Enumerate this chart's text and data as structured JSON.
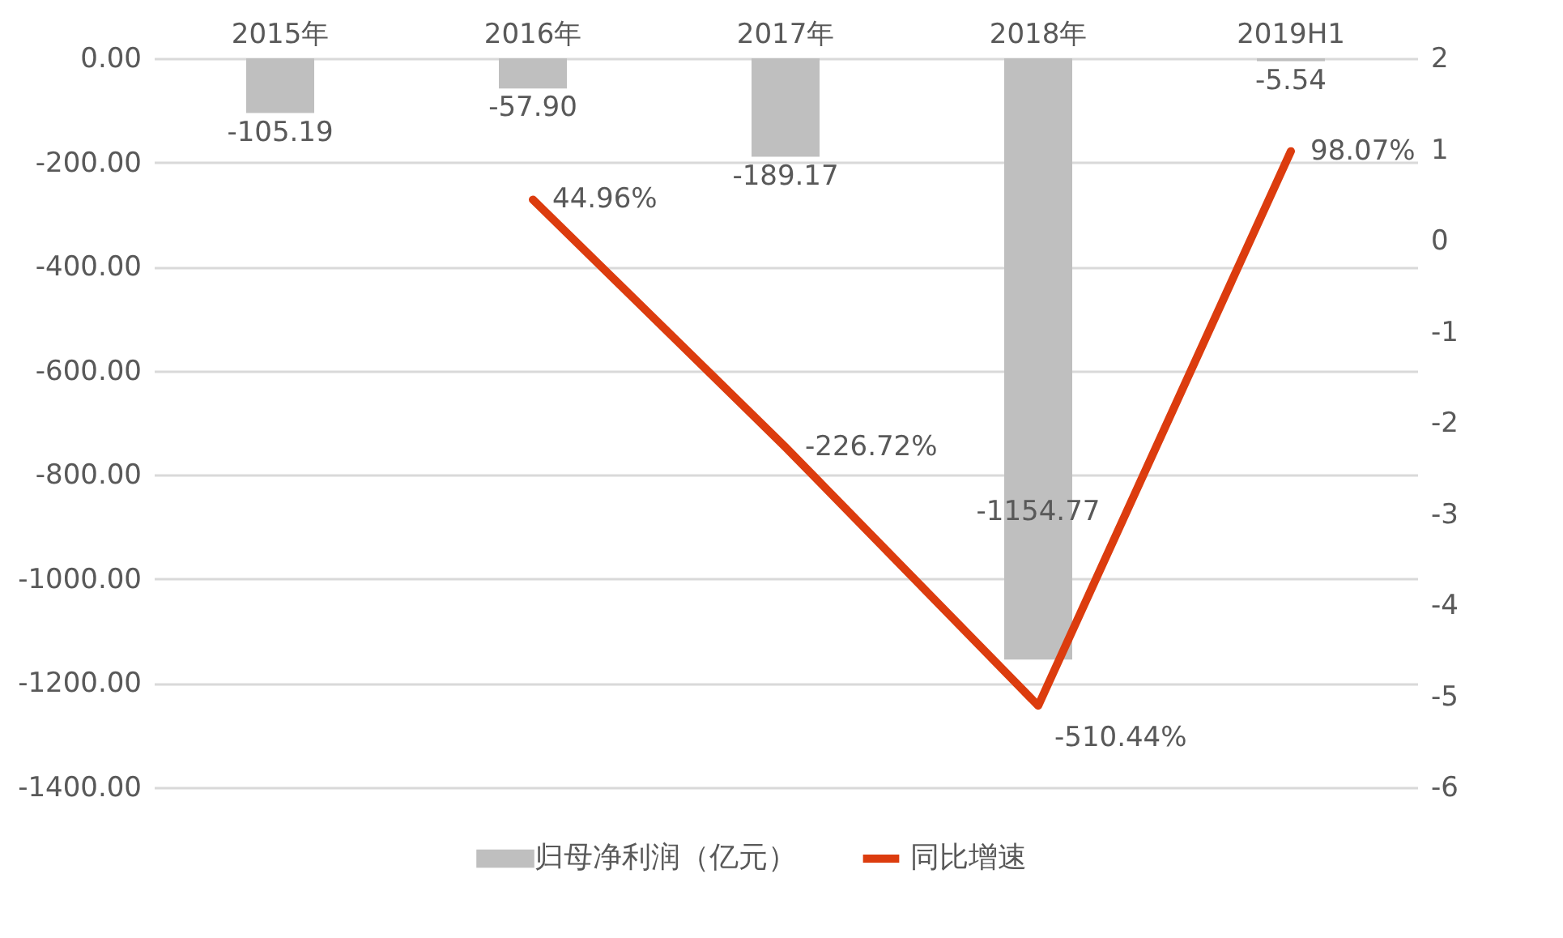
{
  "chart_data": {
    "type": "bar",
    "categories": [
      "2015年",
      "2016年",
      "2017年",
      "2018年",
      "2019H1"
    ],
    "series": [
      {
        "name": "归母净利润（亿元）",
        "color": "#bfbfbf",
        "values": [
          -105.19,
          -57.9,
          -189.17,
          -1154.77,
          -5.54
        ],
        "value_labels": [
          "-105.19",
          "-57.90",
          "-189.17",
          "-1154.77",
          "-5.54"
        ]
      },
      {
        "name": "同比增速",
        "type": "line",
        "axis": "y2",
        "color": "#dc3c0e",
        "values": [
          null,
          0.4496,
          -2.2672,
          -5.1044,
          0.9807
        ],
        "value_labels": [
          null,
          "44.96%",
          "-226.72%",
          "-510.44%",
          "98.07%"
        ]
      }
    ],
    "ylim": [
      -1400,
      0
    ],
    "yticks": [
      {
        "value": 0,
        "label": "0.00"
      },
      {
        "value": -200,
        "label": "-200.00"
      },
      {
        "value": -400,
        "label": "-400.00"
      },
      {
        "value": -600,
        "label": "-600.00"
      },
      {
        "value": -800,
        "label": "-800.00"
      },
      {
        "value": -1000,
        "label": "-1000.00"
      },
      {
        "value": -1200,
        "label": "-1200.00"
      },
      {
        "value": -1400,
        "label": "-1400.00"
      }
    ],
    "y2lim": [
      -6,
      2
    ],
    "y2ticks": [
      2,
      1,
      0,
      -1,
      -2,
      -3,
      -4,
      -5,
      -6
    ],
    "grid": "y",
    "legend": "bottom"
  }
}
